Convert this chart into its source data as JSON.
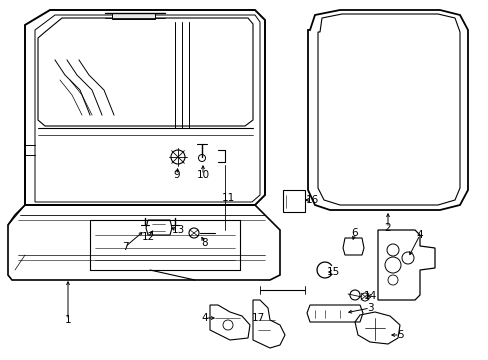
{
  "background_color": "#ffffff",
  "line_color": "#000000",
  "figsize": [
    4.89,
    3.6
  ],
  "dpi": 100,
  "font_size": 7.5
}
